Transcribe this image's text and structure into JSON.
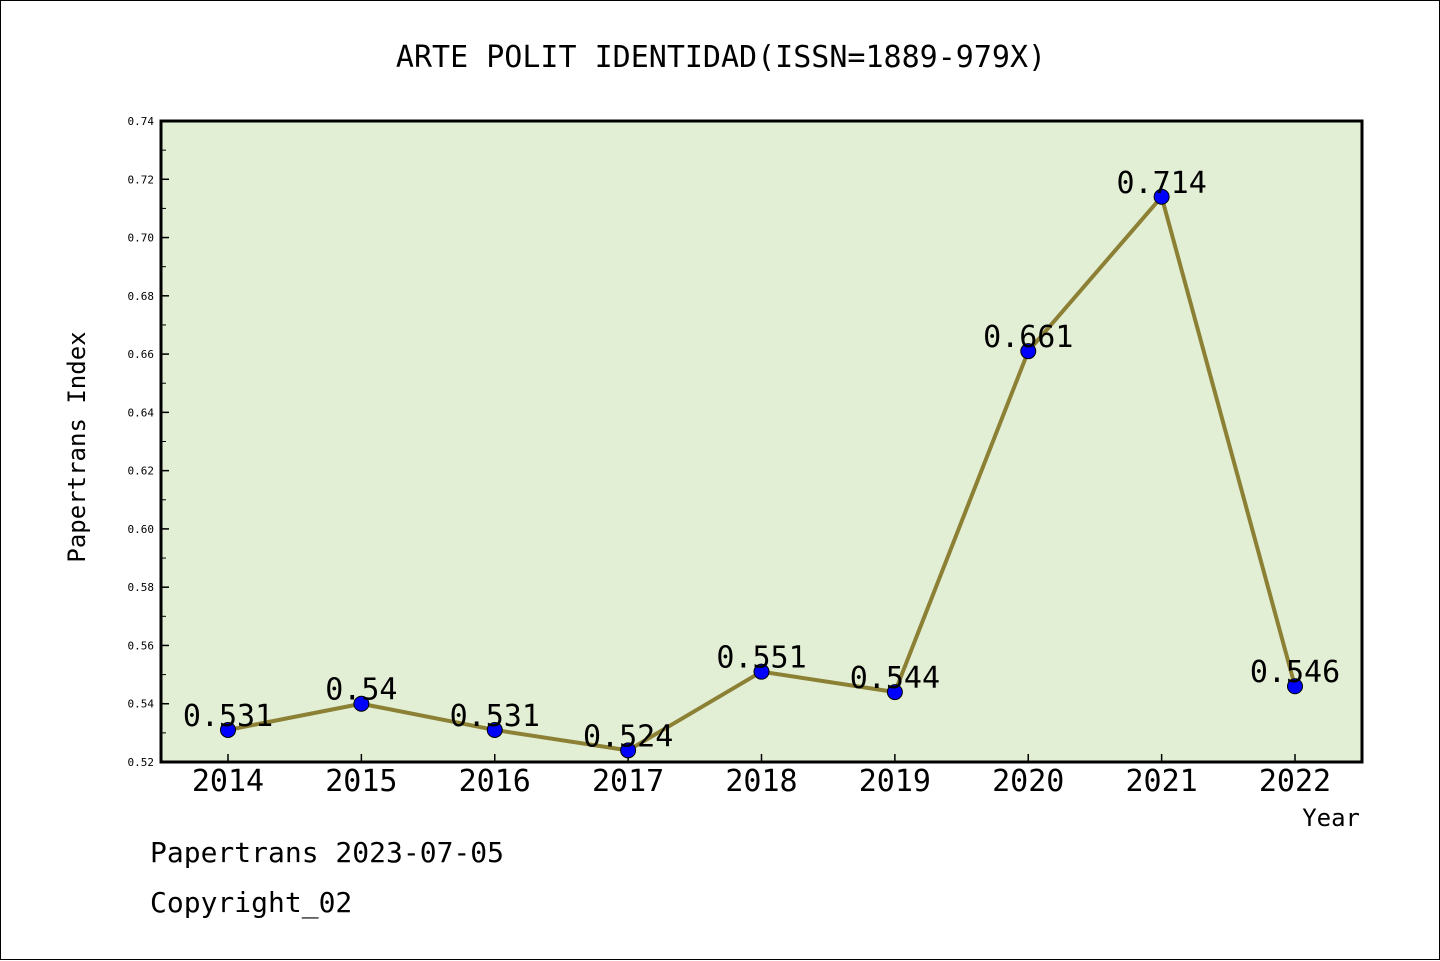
{
  "chart_data": {
    "type": "line",
    "title": "ARTE POLIT IDENTIDAD(ISSN=1889-979X)",
    "xlabel": "Year",
    "ylabel": "Papertrans Index",
    "categories": [
      "2014",
      "2015",
      "2016",
      "2017",
      "2018",
      "2019",
      "2020",
      "2021",
      "2022"
    ],
    "series": [
      {
        "values": [
          0.531,
          0.54,
          0.531,
          0.524,
          0.551,
          0.544,
          0.661,
          0.714,
          0.546
        ],
        "data_labels": [
          "0.531",
          "0.54",
          "0.531",
          "0.524",
          "0.551",
          "0.544",
          "0.661",
          "0.714",
          "0.546"
        ]
      }
    ],
    "ylim": [
      0.52,
      0.74
    ],
    "y_major_ticks": [
      0.52,
      0.54,
      0.56,
      0.58,
      0.6,
      0.62,
      0.64,
      0.66,
      0.68,
      0.7,
      0.72,
      0.74
    ],
    "y_tick_labels": [
      "0.52",
      "0.54",
      "0.56",
      "0.58",
      "0.60",
      "0.62",
      "0.64",
      "0.66",
      "0.68",
      "0.70",
      "0.72",
      "0.74"
    ],
    "y_minor_step": 0.01,
    "grid": false,
    "legend": "none",
    "colors": {
      "plot_background": "#e2efd5",
      "line": "#8c8035",
      "marker": "#0000ff",
      "axis": "#000000",
      "text": "#000000"
    }
  },
  "footer": {
    "date_text": "Papertrans 2023-07-05",
    "copyright_text": "Copyright_02"
  }
}
